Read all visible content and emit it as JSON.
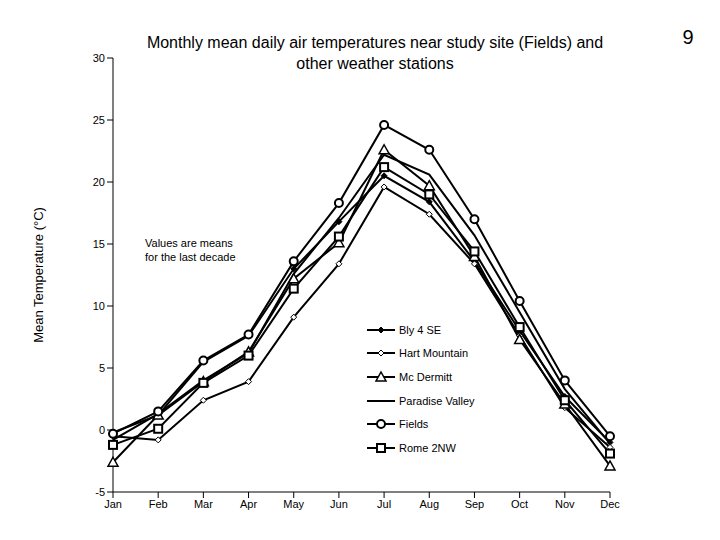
{
  "chart_data": {
    "type": "line",
    "title": "Monthly mean daily air temperatures near study site (Fields) and other weather stations",
    "annotation": "Values are means for the last decade",
    "page_number": "9",
    "y_label": "Mean Temperature (°C)",
    "categories": [
      "Jan",
      "Feb",
      "Mar",
      "Apr",
      "May",
      "Jun",
      "Jul",
      "Aug",
      "Sep",
      "Oct",
      "Nov",
      "Dec"
    ],
    "ylim": [
      -5,
      30
    ],
    "yticks": [
      -5,
      0,
      5,
      10,
      15,
      20,
      25,
      30
    ],
    "grid": false,
    "legend": "right",
    "series": [
      {
        "name": "Bly 4 SE",
        "color": "#000000",
        "marker": "diamond",
        "values": [
          -0.2,
          1.2,
          5.5,
          7.6,
          13.0,
          16.8,
          20.5,
          18.4,
          13.6,
          8.0,
          2.7,
          -1.0
        ]
      },
      {
        "name": "Hart Mountain",
        "color": "#000000",
        "marker": "open_diamond",
        "values": [
          -0.5,
          -0.8,
          2.4,
          3.9,
          9.1,
          13.4,
          19.6,
          17.4,
          13.4,
          7.6,
          1.8,
          -1.4
        ]
      },
      {
        "name": "Mc Dermitt",
        "color": "#000000",
        "marker": "triangle",
        "values": [
          -2.6,
          1.2,
          3.9,
          6.3,
          12.2,
          15.1,
          22.6,
          19.7,
          14.0,
          7.3,
          2.1,
          -2.9
        ]
      },
      {
        "name": "Paradise Valley",
        "color": "#000000",
        "marker": "none",
        "values": [
          -0.8,
          1.3,
          4.0,
          6.2,
          12.6,
          17.1,
          22.2,
          20.6,
          15.7,
          9.5,
          3.3,
          -1.1
        ]
      },
      {
        "name": "Fields",
        "color": "#000000",
        "marker": "circle",
        "values": [
          -0.3,
          1.5,
          5.6,
          7.7,
          13.6,
          18.3,
          24.6,
          22.6,
          17.0,
          10.4,
          4.0,
          -0.5
        ]
      },
      {
        "name": "Rome 2NW",
        "color": "#000000",
        "marker": "square",
        "values": [
          -1.2,
          0.1,
          3.8,
          6.0,
          11.4,
          15.6,
          21.2,
          19.0,
          14.4,
          8.3,
          2.4,
          -1.9
        ]
      }
    ]
  }
}
